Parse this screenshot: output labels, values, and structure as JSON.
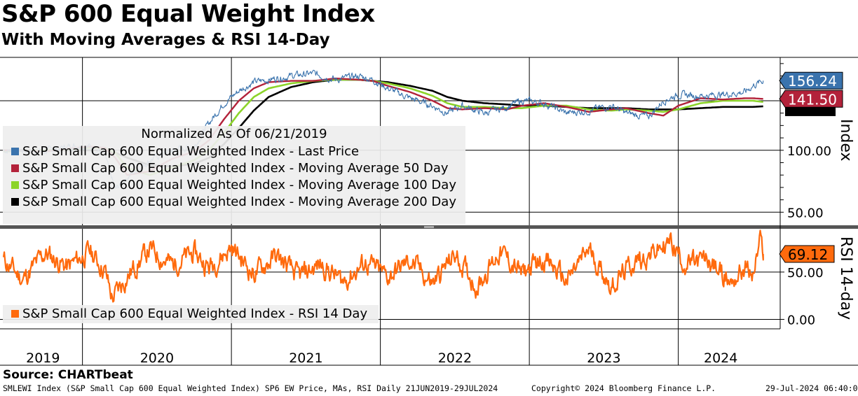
{
  "title": "S&P 600 Equal Weight Index",
  "subtitle": "With Moving Averages & RSI 14-Day",
  "source": "Source: CHARTbeat",
  "footer": {
    "left": "SMLEWI Index (S&P Small Cap 600 Equal Weighted Index) SP6 EW Price, MAs, RSI  Daily 21JUN2019-29JUL2024",
    "center": "Copyright© 2024 Bloomberg Finance L.P.",
    "right": "29-Jul-2024 06:40:03"
  },
  "colors": {
    "last_price": "#3a73ad",
    "ma50": "#b3223a",
    "ma100": "#8cd42a",
    "ma200": "#000000",
    "rsi": "#ff6a0d"
  },
  "legend_main": {
    "header": "Normalized As Of 06/21/2019",
    "items": [
      {
        "label": "S&P Small Cap 600 Equal Weighted Index - Last Price",
        "color": "#3a73ad"
      },
      {
        "label": "S&P Small Cap 600 Equal Weighted Index - Moving Average 50 Day",
        "color": "#b3223a"
      },
      {
        "label": "S&P Small Cap 600 Equal Weighted Index - Moving Average 100 Day",
        "color": "#8cd42a"
      },
      {
        "label": "S&P Small Cap 600 Equal Weighted Index - Moving Average 200 Day",
        "color": "#000000"
      }
    ]
  },
  "legend_rsi": {
    "items": [
      {
        "label": "S&P Small Cap 600 Equal Weighted Index - RSI 14 Day",
        "color": "#ff6a0d"
      }
    ]
  },
  "chart_data": [
    {
      "type": "line",
      "title": "S&P 600 Equal Weight Index",
      "ylabel": "Index",
      "ylim": [
        40,
        175
      ],
      "yticks": [
        "100.00",
        "50.00"
      ],
      "yticks_values": [
        100,
        50
      ],
      "x_labels": [
        "2019",
        "2020",
        "2021",
        "2022",
        "2023",
        "2024"
      ],
      "x": [
        2019.47,
        2019.75,
        2019.95,
        2020.05,
        2020.15,
        2020.22,
        2020.3,
        2020.45,
        2020.6,
        2020.75,
        2020.85,
        2020.95,
        2021.05,
        2021.15,
        2021.25,
        2021.4,
        2021.55,
        2021.7,
        2021.85,
        2021.95,
        2022.05,
        2022.2,
        2022.35,
        2022.45,
        2022.55,
        2022.7,
        2022.85,
        2022.95,
        2023.1,
        2023.25,
        2023.4,
        2023.55,
        2023.65,
        2023.8,
        2023.9,
        2024.0,
        2024.15,
        2024.3,
        2024.45,
        2024.5,
        2024.57
      ],
      "series": [
        {
          "name": "Last Price",
          "values": [
            100,
            99,
            104,
            103,
            96,
            68,
            78,
            92,
            100,
            103,
            122,
            138,
            148,
            155,
            157,
            160,
            162,
            157,
            160,
            157,
            150,
            142,
            136,
            130,
            136,
            130,
            135,
            140,
            138,
            130,
            132,
            136,
            130,
            127,
            140,
            145,
            144,
            145,
            147,
            152,
            156.24
          ]
        },
        {
          "name": "Moving Average 50 Day",
          "values": [
            100,
            99,
            102,
            103,
            102,
            94,
            80,
            83,
            93,
            99,
            108,
            125,
            140,
            150,
            155,
            156,
            156,
            158,
            157,
            156,
            152,
            147,
            140,
            134,
            133,
            134,
            133,
            136,
            138,
            135,
            131,
            133,
            134,
            130,
            128,
            136,
            142,
            141,
            142,
            142,
            141.5
          ]
        },
        {
          "name": "Moving Average 100 Day",
          "values": [
            99,
            100,
            101,
            102,
            102,
            98,
            86,
            80,
            86,
            92,
            100,
            114,
            130,
            143,
            150,
            154,
            156,
            157,
            157,
            156,
            154,
            150,
            144,
            138,
            135,
            135,
            134,
            134,
            136,
            136,
            133,
            132,
            133,
            132,
            131,
            133,
            138,
            140,
            140,
            140,
            139
          ]
        },
        {
          "name": "Moving Average 200 Day",
          "values": [
            100,
            100,
            100,
            100,
            100,
            98,
            94,
            88,
            87,
            89,
            94,
            105,
            118,
            132,
            143,
            151,
            155,
            157,
            157,
            156,
            155,
            152,
            148,
            143,
            140,
            138,
            137,
            136,
            136,
            135,
            134,
            134,
            134,
            133,
            133,
            133,
            134,
            135,
            135,
            135,
            135.5
          ]
        }
      ],
      "value_labels": [
        "156.24",
        "141.50"
      ]
    },
    {
      "type": "line",
      "title": "RSI 14-day",
      "ylabel": "RSI 14-day",
      "ylim": [
        -10,
        95
      ],
      "yticks": [
        "50.00",
        "0.00"
      ],
      "yticks_values": [
        50,
        0
      ],
      "x": [
        2019.47,
        2019.6,
        2019.75,
        2019.9,
        2020.05,
        2020.15,
        2020.2,
        2020.3,
        2020.45,
        2020.6,
        2020.75,
        2020.85,
        2021.0,
        2021.15,
        2021.3,
        2021.45,
        2021.6,
        2021.75,
        2021.9,
        2022.05,
        2022.2,
        2022.35,
        2022.5,
        2022.65,
        2022.8,
        2022.95,
        2023.1,
        2023.25,
        2023.4,
        2023.55,
        2023.7,
        2023.85,
        2023.95,
        2024.05,
        2024.2,
        2024.35,
        2024.45,
        2024.5,
        2024.55,
        2024.57
      ],
      "values": [
        63,
        42,
        70,
        55,
        72,
        52,
        22,
        45,
        74,
        58,
        70,
        55,
        76,
        48,
        67,
        45,
        58,
        40,
        60,
        45,
        62,
        38,
        68,
        35,
        72,
        48,
        65,
        40,
        74,
        35,
        60,
        72,
        82,
        58,
        62,
        40,
        55,
        45,
        82,
        69.12
      ],
      "value_label": "69.12"
    }
  ]
}
